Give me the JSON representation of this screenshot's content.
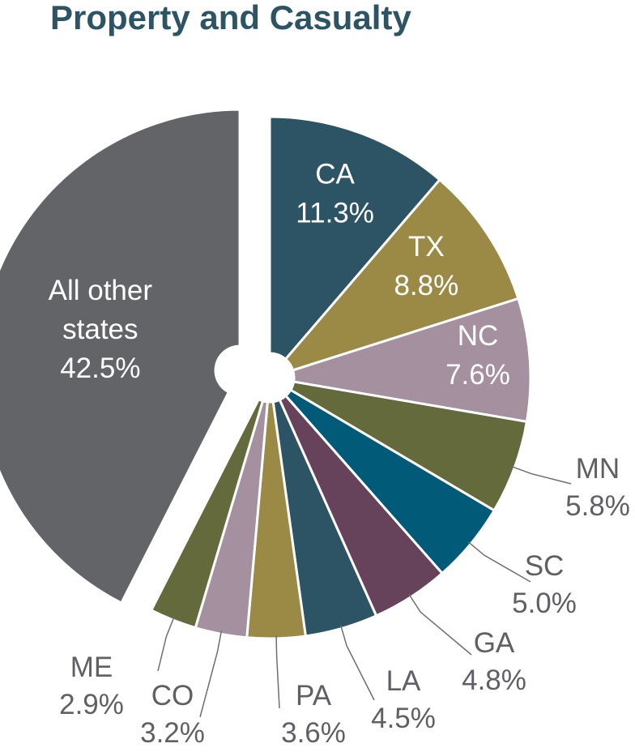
{
  "chart_data": {
    "type": "pie",
    "title": "Property and Casualty",
    "categories": [
      "CA",
      "TX",
      "NC",
      "MN",
      "SC",
      "GA",
      "LA",
      "PA",
      "CO",
      "ME",
      "All other states"
    ],
    "values": [
      11.3,
      8.8,
      7.6,
      5.8,
      5.0,
      4.8,
      4.5,
      3.6,
      3.2,
      2.9,
      42.5
    ],
    "value_labels": [
      "11.3%",
      "8.8%",
      "7.6%",
      "5.8%",
      "5.0%",
      "4.8%",
      "4.5%",
      "3.6%",
      "3.2%",
      "2.9%",
      "42.5%"
    ],
    "colors": [
      "#2d5464",
      "#9a8a45",
      "#a4909f",
      "#656a3c",
      "#005a78",
      "#66435a",
      "#2d5464",
      "#9a8a45",
      "#a4909f",
      "#656a3c",
      "#636468"
    ]
  }
}
